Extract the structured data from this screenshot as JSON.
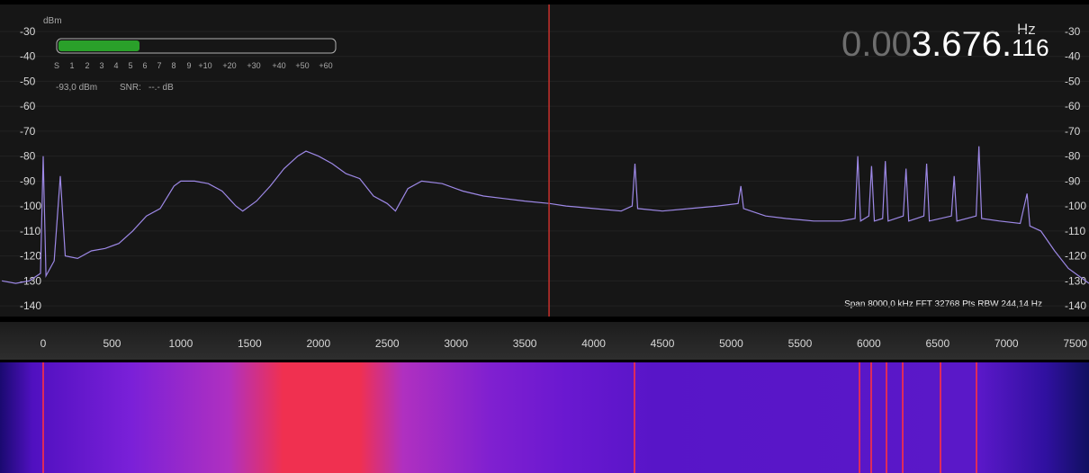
{
  "chart_data": {
    "type": "line",
    "y_label": "dBm",
    "x": [
      -300,
      -200,
      -100,
      -20,
      0,
      20,
      80,
      124,
      160,
      250,
      350,
      450,
      550,
      650,
      750,
      850,
      950,
      1000,
      1100,
      1200,
      1300,
      1400,
      1450,
      1550,
      1650,
      1750,
      1850,
      1910,
      2000,
      2100,
      2200,
      2300,
      2400,
      2500,
      2560,
      2650,
      2750,
      2900,
      3050,
      3200,
      3350,
      3500,
      3680,
      3800,
      4000,
      4200,
      4280,
      4300,
      4320,
      4500,
      4700,
      4900,
      5050,
      5070,
      5090,
      5250,
      5400,
      5600,
      5800,
      5900,
      5920,
      5940,
      6000,
      6020,
      6040,
      6100,
      6120,
      6140,
      6250,
      6270,
      6290,
      6400,
      6420,
      6440,
      6600,
      6620,
      6640,
      6780,
      6800,
      6820,
      6950,
      7100,
      7150,
      7170,
      7250,
      7350,
      7450,
      7550,
      7600
    ],
    "series": [
      {
        "color": "#9d88e6",
        "values": [
          -130,
          -131,
          -130,
          -127,
          -80,
          -128,
          -122,
          -88,
          -120,
          -121,
          -118,
          -117,
          -115,
          -110,
          -104,
          -101,
          -92,
          -90,
          -90,
          -91,
          -94,
          -100,
          -102,
          -98,
          -92,
          -85,
          -80,
          -78,
          -80,
          -83,
          -87,
          -89,
          -96,
          -99,
          -102,
          -93,
          -90,
          -91,
          -94,
          -96,
          -97,
          -98,
          -99,
          -100,
          -101,
          -102,
          -100,
          -83,
          -101,
          -102,
          -101,
          -100,
          -99,
          -92,
          -101,
          -104,
          -105,
          -106,
          -106,
          -105,
          -80,
          -106,
          -104,
          -84,
          -106,
          -105,
          -82,
          -106,
          -104,
          -85,
          -106,
          -104,
          -83,
          -106,
          -104,
          -88,
          -106,
          -104,
          -76,
          -105,
          -106,
          -107,
          -95,
          -108,
          -110,
          -118,
          -125,
          -129,
          -131
        ]
      }
    ],
    "xlim": [
      -314,
      7600
    ],
    "ylim": [
      -144.3,
      -19.2
    ],
    "xticks": [
      0,
      500,
      1000,
      1500,
      2000,
      2500,
      3000,
      3500,
      4000,
      4500,
      5000,
      5500,
      6000,
      6500,
      7000,
      7500
    ],
    "yticks": [
      -30,
      -40,
      -50,
      -60,
      -70,
      -80,
      -90,
      -100,
      -110,
      -120,
      -130,
      -140
    ],
    "cursor": 3676.116,
    "cursor_color": "#c8302c"
  },
  "s_meter": {
    "scale": [
      "S",
      "1",
      "2",
      "3",
      "4",
      "5",
      "6",
      "7",
      "8",
      "9",
      "+10",
      "+20",
      "+30",
      "+40",
      "+50",
      "+60"
    ],
    "level": "-93,0 dBm",
    "snr_label": "SNR:",
    "snr": "--.- dB"
  },
  "frequency": {
    "dim": "0.00",
    "main": "3.676.",
    "small": "116",
    "unit": "Hz"
  },
  "status": "Span 8000,0 kHz FFT 32768 Pts  RBW 244,14 Hz"
}
